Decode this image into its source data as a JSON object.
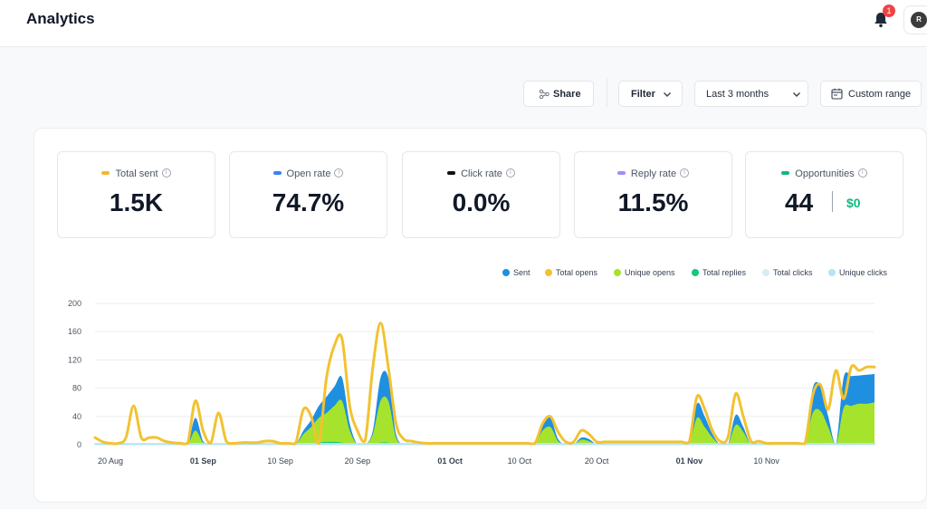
{
  "header": {
    "title": "Analytics",
    "notification_count": "1",
    "avatar_initial": "R"
  },
  "toolbar": {
    "share_label": "Share",
    "filter_label": "Filter",
    "range_label": "Last 3 months",
    "custom_label": "Custom range"
  },
  "cards": [
    {
      "label": "Total sent",
      "value": "1.5K",
      "color": "#f5b731"
    },
    {
      "label": "Open rate",
      "value": "74.7%",
      "color": "#3b82f6"
    },
    {
      "label": "Click rate",
      "value": "0.0%",
      "color": "#111111"
    },
    {
      "label": "Reply rate",
      "value": "11.5%",
      "color": "#a78bfa"
    },
    {
      "label": "Opportunities",
      "value": "44",
      "secondary": "$0",
      "color": "#10b981"
    }
  ],
  "icons": {
    "share": "share-icon",
    "filter": "chevron-down-icon",
    "range": "chevron-down-icon",
    "custom": "calendar-icon",
    "bell": "bell-icon",
    "info": "info-icon"
  },
  "chart_data": {
    "type": "area",
    "title": "",
    "xlabel": "",
    "ylabel": "",
    "ylim": [
      0,
      200
    ],
    "yticks": [
      0,
      40,
      80,
      120,
      160,
      200
    ],
    "grid": true,
    "legend_position": "top-right",
    "xtick_labels": [
      "20 Aug",
      "01 Sep",
      "10 Sep",
      "20 Sep",
      "01 Oct",
      "10 Oct",
      "20 Oct",
      "01 Nov",
      "10 Nov"
    ],
    "xtick_bold": [
      false,
      true,
      false,
      false,
      true,
      false,
      false,
      true,
      false
    ],
    "xtick_index": [
      2,
      14,
      24,
      34,
      46,
      55,
      65,
      77,
      87
    ],
    "series": [
      {
        "name": "Sent",
        "color": "#1f8fe0",
        "kind": "area",
        "values": [
          0,
          0,
          0,
          0,
          0,
          0,
          0,
          0,
          0,
          0,
          0,
          0,
          0,
          38,
          5,
          0,
          0,
          0,
          0,
          0,
          0,
          0,
          0,
          0,
          0,
          0,
          0,
          20,
          35,
          55,
          68,
          82,
          95,
          30,
          0,
          0,
          20,
          95,
          95,
          15,
          0,
          0,
          0,
          0,
          0,
          0,
          0,
          0,
          0,
          0,
          0,
          0,
          0,
          0,
          0,
          0,
          0,
          0,
          30,
          38,
          8,
          0,
          0,
          10,
          8,
          0,
          0,
          0,
          0,
          0,
          0,
          0,
          0,
          0,
          0,
          0,
          0,
          0,
          58,
          40,
          15,
          0,
          0,
          42,
          25,
          0,
          0,
          0,
          0,
          0,
          0,
          0,
          0,
          80,
          82,
          40,
          0,
          95,
          97,
          98,
          99,
          100
        ]
      },
      {
        "name": "Total opens",
        "color": "#f2c230",
        "kind": "line",
        "values": [
          10,
          4,
          2,
          2,
          10,
          55,
          10,
          10,
          10,
          5,
          3,
          2,
          2,
          62,
          20,
          3,
          45,
          5,
          2,
          3,
          3,
          3,
          5,
          5,
          2,
          2,
          2,
          50,
          40,
          2,
          95,
          140,
          150,
          55,
          20,
          6,
          110,
          172,
          110,
          30,
          8,
          5,
          3,
          2,
          2,
          2,
          2,
          2,
          2,
          2,
          2,
          2,
          2,
          2,
          2,
          2,
          2,
          2,
          30,
          40,
          18,
          4,
          4,
          20,
          15,
          4,
          4,
          4,
          4,
          4,
          4,
          4,
          4,
          4,
          4,
          4,
          4,
          4,
          68,
          50,
          20,
          5,
          10,
          72,
          40,
          5,
          5,
          2,
          2,
          2,
          2,
          2,
          2,
          70,
          85,
          50,
          105,
          65,
          110,
          105,
          110,
          110
        ]
      },
      {
        "name": "Unique opens",
        "color": "#a6e32c",
        "kind": "area",
        "values": [
          0,
          0,
          0,
          0,
          0,
          0,
          0,
          0,
          0,
          0,
          0,
          0,
          0,
          20,
          3,
          0,
          0,
          0,
          0,
          0,
          0,
          0,
          0,
          0,
          0,
          0,
          0,
          15,
          25,
          38,
          45,
          55,
          62,
          20,
          0,
          0,
          15,
          62,
          62,
          10,
          0,
          0,
          0,
          0,
          0,
          0,
          0,
          0,
          0,
          0,
          0,
          0,
          0,
          0,
          0,
          0,
          0,
          0,
          20,
          25,
          5,
          0,
          0,
          7,
          5,
          0,
          0,
          0,
          0,
          0,
          0,
          0,
          0,
          0,
          0,
          0,
          0,
          0,
          38,
          25,
          10,
          0,
          0,
          28,
          18,
          0,
          0,
          0,
          0,
          0,
          0,
          0,
          0,
          45,
          48,
          25,
          0,
          52,
          55,
          58,
          58,
          60
        ]
      },
      {
        "name": "Total replies",
        "color": "#10c97a",
        "kind": "area",
        "values": [
          0,
          0,
          0,
          0,
          0,
          0,
          0,
          0,
          0,
          0,
          0,
          0,
          0,
          1,
          0,
          0,
          0,
          0,
          0,
          0,
          0,
          0,
          0,
          0,
          0,
          0,
          0,
          1,
          1,
          3,
          4,
          4,
          3,
          1,
          0,
          0,
          1,
          3,
          3,
          0,
          0,
          0,
          0,
          0,
          0,
          0,
          0,
          0,
          0,
          0,
          0,
          0,
          0,
          0,
          0,
          0,
          0,
          0,
          1,
          1,
          0,
          0,
          0,
          0,
          0,
          0,
          0,
          0,
          0,
          0,
          0,
          0,
          0,
          0,
          0,
          0,
          0,
          0,
          2,
          1,
          0,
          0,
          0,
          1,
          1,
          0,
          0,
          0,
          0,
          0,
          0,
          0,
          0,
          2,
          2,
          1,
          0,
          2,
          2,
          2,
          2,
          2
        ]
      },
      {
        "name": "Total clicks",
        "color": "#d6ecf5",
        "kind": "line",
        "values": [
          1,
          1,
          1,
          1,
          1,
          1,
          1,
          1,
          1,
          1,
          1,
          1,
          1,
          1,
          1,
          1,
          1,
          1,
          1,
          1,
          1,
          1,
          1,
          1,
          1,
          1,
          1,
          1,
          1,
          1,
          1,
          1,
          1,
          1,
          1,
          1,
          1,
          1,
          1,
          1,
          1,
          1,
          1,
          1,
          1,
          1,
          1,
          1,
          1,
          1,
          1,
          1,
          1,
          1,
          1,
          1,
          1,
          1,
          1,
          1,
          1,
          1,
          1,
          1,
          1,
          1,
          1,
          1,
          1,
          1,
          1,
          1,
          1,
          1,
          1,
          1,
          1,
          1,
          1,
          1,
          1,
          1,
          1,
          1,
          1,
          1,
          1,
          1,
          1,
          1,
          1,
          1,
          1,
          1,
          1,
          1,
          1,
          1,
          1,
          1,
          1,
          1
        ]
      },
      {
        "name": "Unique clicks",
        "color": "#b3e6f5",
        "kind": "line",
        "values": [
          1,
          1,
          1,
          1,
          1,
          1,
          1,
          1,
          1,
          1,
          1,
          1,
          1,
          1,
          1,
          1,
          1,
          1,
          1,
          1,
          1,
          1,
          1,
          1,
          1,
          1,
          1,
          1,
          1,
          1,
          1,
          1,
          1,
          1,
          1,
          1,
          1,
          1,
          1,
          1,
          1,
          1,
          1,
          1,
          1,
          1,
          1,
          1,
          1,
          1,
          1,
          1,
          1,
          1,
          1,
          1,
          1,
          1,
          1,
          1,
          1,
          1,
          1,
          1,
          1,
          1,
          1,
          1,
          1,
          1,
          1,
          1,
          1,
          1,
          1,
          1,
          1,
          1,
          1,
          1,
          1,
          1,
          1,
          1,
          1,
          1,
          1,
          1,
          1,
          1,
          1,
          1,
          1,
          1,
          1,
          1,
          1,
          1,
          1,
          1,
          1,
          1
        ]
      }
    ]
  }
}
